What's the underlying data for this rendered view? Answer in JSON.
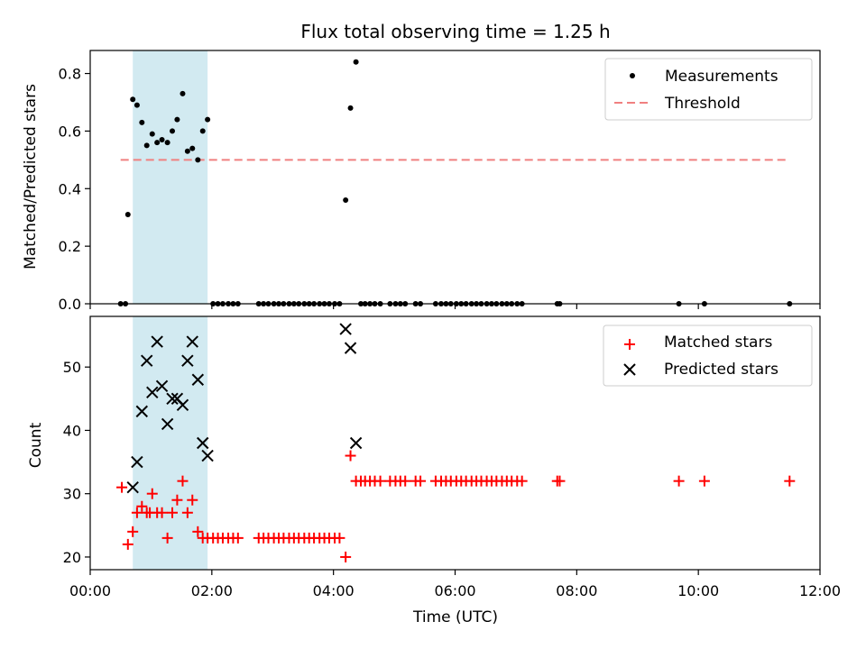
{
  "chart_data": [
    {
      "type": "scatter",
      "title": "Flux total observing time = 1.25 h",
      "ylabel": "Matched/Predicted stars",
      "xlabel": "",
      "xlim": [
        0.0,
        12.0
      ],
      "ylim": [
        0.0,
        0.88
      ],
      "yticks": [
        0.0,
        0.2,
        0.4,
        0.6,
        0.8
      ],
      "ytick_labels": [
        "0.0",
        "0.2",
        "0.4",
        "0.6",
        "0.8"
      ],
      "shaded_interval": [
        0.7,
        1.93
      ],
      "threshold": {
        "y": 0.5,
        "x": [
          0.5,
          11.5
        ]
      },
      "series": [
        {
          "name": "Measurements",
          "x": [
            0.62,
            0.7,
            0.77,
            0.85,
            0.93,
            1.02,
            1.1,
            1.18,
            1.27,
            1.35,
            1.43,
            1.52,
            1.6,
            1.68,
            1.77,
            1.85,
            1.93,
            0.5,
            0.58,
            2.02,
            2.1,
            2.18,
            2.27,
            2.35,
            2.43,
            2.77,
            2.85,
            2.93,
            3.02,
            3.1,
            3.18,
            3.27,
            3.35,
            3.43,
            3.52,
            3.6,
            3.68,
            3.77,
            3.85,
            3.93,
            4.02,
            4.1,
            4.2,
            4.28,
            4.37,
            4.45,
            4.52,
            4.6,
            4.68,
            4.77,
            4.93,
            5.02,
            5.1,
            5.18,
            5.35,
            5.43,
            5.68,
            5.77,
            5.85,
            5.93,
            6.02,
            6.1,
            6.18,
            6.27,
            6.35,
            6.43,
            6.52,
            6.6,
            6.68,
            6.77,
            6.85,
            6.93,
            7.02,
            7.1,
            7.68,
            7.72,
            9.68,
            10.1,
            11.5
          ],
          "y": [
            0.31,
            0.71,
            0.69,
            0.63,
            0.55,
            0.59,
            0.56,
            0.57,
            0.56,
            0.6,
            0.64,
            0.73,
            0.53,
            0.54,
            0.5,
            0.6,
            0.64,
            0.0,
            0.0,
            0.0,
            0.0,
            0.0,
            0.0,
            0.0,
            0.0,
            0.0,
            0.0,
            0.0,
            0.0,
            0.0,
            0.0,
            0.0,
            0.0,
            0.0,
            0.0,
            0.0,
            0.0,
            0.0,
            0.0,
            0.0,
            0.0,
            0.0,
            0.36,
            0.68,
            0.84,
            0.0,
            0.0,
            0.0,
            0.0,
            0.0,
            0.0,
            0.0,
            0.0,
            0.0,
            0.0,
            0.0,
            0.0,
            0.0,
            0.0,
            0.0,
            0.0,
            0.0,
            0.0,
            0.0,
            0.0,
            0.0,
            0.0,
            0.0,
            0.0,
            0.0,
            0.0,
            0.0,
            0.0,
            0.0,
            0.0,
            0.0,
            0.0,
            0.0,
            0.0
          ],
          "color": "#000000"
        },
        {
          "name": "Threshold",
          "type": "line",
          "color": "#f08080"
        }
      ],
      "legend": "top-right"
    },
    {
      "type": "scatter",
      "title": "",
      "ylabel": "Count",
      "xlabel": "Time (UTC)",
      "xlim": [
        0.0,
        12.0
      ],
      "ylim": [
        18.0,
        58.0
      ],
      "yticks": [
        20,
        30,
        40,
        50
      ],
      "ytick_labels": [
        "20",
        "30",
        "40",
        "50"
      ],
      "xticks": [
        0,
        2,
        4,
        6,
        8,
        10,
        12
      ],
      "xtick_labels": [
        "00:00",
        "02:00",
        "04:00",
        "06:00",
        "08:00",
        "10:00",
        "12:00"
      ],
      "shaded_interval": [
        0.7,
        1.93
      ],
      "series": [
        {
          "name": "Matched stars",
          "marker": "plus",
          "color": "#ff0000",
          "x": [
            0.52,
            0.62,
            0.7,
            0.77,
            0.85,
            0.93,
            0.98,
            1.02,
            1.1,
            1.18,
            1.27,
            1.35,
            1.43,
            1.52,
            1.6,
            1.68,
            1.77,
            1.85,
            1.93,
            2.02,
            2.1,
            2.18,
            2.27,
            2.35,
            2.43,
            2.77,
            2.85,
            2.93,
            3.02,
            3.1,
            3.18,
            3.27,
            3.35,
            3.43,
            3.52,
            3.6,
            3.68,
            3.77,
            3.85,
            3.93,
            4.02,
            4.1,
            4.2,
            4.28,
            4.37,
            4.45,
            4.52,
            4.6,
            4.68,
            4.77,
            4.93,
            5.02,
            5.1,
            5.18,
            5.35,
            5.43,
            5.68,
            5.77,
            5.85,
            5.93,
            6.02,
            6.1,
            6.18,
            6.27,
            6.35,
            6.43,
            6.52,
            6.6,
            6.68,
            6.77,
            6.85,
            6.93,
            7.02,
            7.1,
            7.68,
            7.72,
            9.68,
            10.1,
            11.5
          ],
          "y": [
            31,
            22,
            24,
            27,
            28,
            27,
            27,
            30,
            27,
            27,
            23,
            27,
            29,
            32,
            27,
            29,
            24,
            23,
            23,
            23,
            23,
            23,
            23,
            23,
            23,
            23,
            23,
            23,
            23,
            23,
            23,
            23,
            23,
            23,
            23,
            23,
            23,
            23,
            23,
            23,
            23,
            23,
            20,
            36,
            32,
            32,
            32,
            32,
            32,
            32,
            32,
            32,
            32,
            32,
            32,
            32,
            32,
            32,
            32,
            32,
            32,
            32,
            32,
            32,
            32,
            32,
            32,
            32,
            32,
            32,
            32,
            32,
            32,
            32,
            32,
            32,
            32,
            32,
            32
          ]
        },
        {
          "name": "Predicted stars",
          "marker": "x",
          "color": "#000000",
          "x": [
            0.7,
            0.77,
            0.85,
            0.93,
            1.02,
            1.1,
            1.18,
            1.27,
            1.35,
            1.43,
            1.52,
            1.6,
            1.68,
            1.77,
            1.85,
            1.93,
            4.2,
            4.28,
            4.37
          ],
          "y": [
            31,
            35,
            43,
            51,
            46,
            54,
            47,
            41,
            45,
            45,
            44,
            51,
            54,
            48,
            38,
            36,
            56,
            53,
            38
          ]
        }
      ],
      "legend": "top-right"
    }
  ]
}
